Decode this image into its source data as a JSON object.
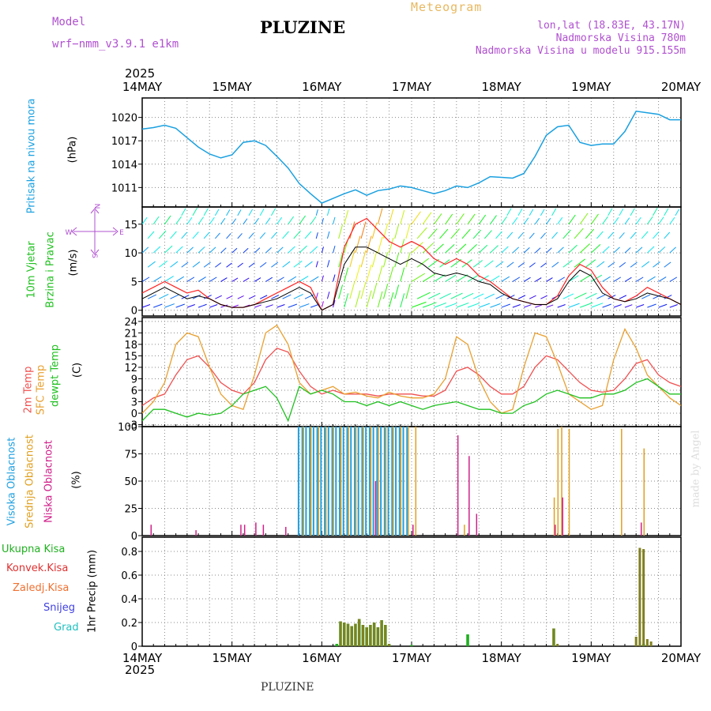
{
  "header": {
    "model_label": "Model",
    "model_name": "wrf−nmm_v3.9.1  e1km",
    "title": "PLUZINE",
    "meteogram": "Meteogram",
    "lonlat": "lon,lat (18.83E, 43.17N)",
    "altitude": "Nadmorska Visina 780m",
    "model_altitude": "Nadmorska Visina u modelu 915.155m",
    "year_top": "2025",
    "year_bottom": "2025",
    "footer": "PLUZINE",
    "watermark": "made by Angel"
  },
  "dates": [
    "14MAY",
    "15MAY",
    "16MAY",
    "17MAY",
    "18MAY",
    "19MAY",
    "20MAY"
  ],
  "panel_labels": {
    "pressure": [
      "Pritisak na nivou mora",
      "(hPa)"
    ],
    "wind": [
      "10m Vjetar",
      "Brzina i Pravac",
      "(m/s)"
    ],
    "wind_compass": [
      "N",
      "W",
      "E",
      "S"
    ],
    "temp": [
      "2m Temp",
      "SFC Temp",
      "dewpt Temp",
      "(C)"
    ],
    "cloud": [
      "Visoka Oblacnost",
      "Srednja Oblacnost",
      "Niska Oblacnost",
      "(%)"
    ],
    "precip_ylabel": "1hr Precip (mm)",
    "precip_legend": [
      "Ukupna Kisa",
      "Konvek.Kisa",
      "Zaledj.Kisa",
      "Snijeg",
      "Grad"
    ]
  },
  "colors": {
    "pressure": "#1aa0e0",
    "wind_speed": "#000000",
    "gust": "#ff2020",
    "temp2m": "#f05050",
    "sfc": "#e8a030",
    "dewpt": "#20c020",
    "cloud_high": "#20a0e0",
    "cloud_mid": "#e0a020",
    "cloud_low": "#d0208a",
    "precip": "#808020",
    "precip_green": "#20b020",
    "leg_ukupna": "#20b020",
    "leg_konvek": "#e03030",
    "leg_zaledj": "#f07030",
    "leg_snijeg": "#4040e0",
    "leg_grad": "#20c0c0",
    "purple_text": "#b050d0"
  },
  "chart_data": [
    {
      "type": "line",
      "panel": "pressure",
      "ylim": [
        1008.5,
        1022.5
      ],
      "yticks": [
        1011,
        1014,
        1017,
        1020
      ],
      "series": [
        {
          "x": [
            0,
            3,
            6,
            9,
            12,
            15,
            18,
            21,
            24,
            27,
            30,
            33,
            36,
            39,
            42,
            45,
            48,
            51,
            54,
            57,
            60,
            63,
            66,
            69,
            72,
            75,
            78,
            81,
            84,
            87,
            90,
            93,
            96,
            99,
            102,
            105,
            108,
            111,
            114,
            117,
            120,
            123,
            126,
            129,
            132,
            135,
            138,
            141,
            144
          ],
          "values": [
            1018.5,
            1018.7,
            1019.0,
            1018.6,
            1017.4,
            1016.2,
            1015.3,
            1014.8,
            1015.2,
            1016.8,
            1017.0,
            1016.4,
            1015.0,
            1013.5,
            1011.5,
            1010.2,
            1009.0,
            1009.6,
            1010.2,
            1010.7,
            1010.0,
            1010.6,
            1010.8,
            1011.2,
            1011.0,
            1010.6,
            1010.2,
            1010.6,
            1011.2,
            1011.0,
            1011.6,
            1012.4,
            1012.3,
            1012.2,
            1012.8,
            1015.0,
            1017.7,
            1018.8,
            1019.0,
            1016.8,
            1016.4,
            1016.6,
            1016.6,
            1018.2,
            1020.8,
            1020.6,
            1020.4,
            1019.7,
            1019.7
          ]
        }
      ]
    },
    {
      "type": "line",
      "panel": "wind",
      "ylim": [
        -1,
        18
      ],
      "yticks": [
        0,
        5,
        10,
        15
      ],
      "series": [
        {
          "name": "speed",
          "x": [
            0,
            3,
            6,
            9,
            12,
            15,
            18,
            21,
            24,
            27,
            30,
            33,
            36,
            39,
            42,
            45,
            48,
            51,
            54,
            57,
            60,
            63,
            66,
            69,
            72,
            75,
            78,
            81,
            84,
            87,
            90,
            93,
            96,
            99,
            102,
            105,
            108,
            111,
            114,
            117,
            120,
            123,
            126,
            129,
            132,
            135,
            138,
            141,
            144
          ],
          "values": [
            2,
            3,
            4,
            3,
            2,
            2.5,
            2,
            1,
            0.5,
            0.5,
            1,
            1.5,
            2,
            3,
            4,
            3,
            0,
            1,
            8,
            11,
            11,
            10,
            9,
            8,
            9,
            8,
            6.5,
            6,
            6.5,
            6,
            5,
            4.5,
            3,
            2,
            1.5,
            1,
            1,
            2,
            5,
            7,
            6,
            3,
            2,
            1.5,
            2,
            3,
            2.5,
            2,
            1
          ]
        },
        {
          "name": "gust",
          "x": [
            0,
            3,
            6,
            9,
            12,
            15,
            18,
            21,
            24,
            27,
            30,
            33,
            36,
            39,
            42,
            45,
            48,
            51,
            54,
            57,
            60,
            63,
            66,
            69,
            72,
            75,
            78,
            81,
            84,
            87,
            90,
            93,
            96,
            99,
            102,
            105,
            108,
            111,
            114,
            117,
            120,
            123,
            126,
            129,
            132,
            135,
            138,
            141,
            144
          ],
          "values": [
            3,
            4,
            5,
            4,
            3,
            3.5,
            2,
            1,
            0.5,
            0.5,
            1,
            2,
            3,
            4,
            5,
            4,
            0,
            1,
            11,
            15,
            16,
            14,
            12,
            11,
            12,
            11,
            9,
            8,
            9,
            8,
            6,
            5,
            3.5,
            2,
            1.5,
            1,
            1,
            2.5,
            6,
            8,
            7,
            4,
            2,
            1.5,
            2.5,
            4,
            3,
            2,
            1
          ]
        }
      ]
    },
    {
      "type": "line",
      "panel": "temperature",
      "ylim": [
        -3.5,
        25
      ],
      "yticks": [
        -3,
        0,
        3,
        6,
        9,
        12,
        15,
        18,
        21,
        24
      ],
      "series": [
        {
          "name": "2m",
          "x": [
            0,
            3,
            6,
            9,
            12,
            15,
            18,
            21,
            24,
            27,
            30,
            33,
            36,
            39,
            42,
            45,
            48,
            51,
            54,
            57,
            60,
            63,
            66,
            69,
            72,
            75,
            78,
            81,
            84,
            87,
            90,
            93,
            96,
            99,
            102,
            105,
            108,
            111,
            114,
            117,
            120,
            123,
            126,
            129,
            132,
            135,
            138,
            141,
            144
          ],
          "values": [
            2,
            4,
            5,
            10,
            14,
            15,
            12,
            8,
            6,
            5,
            8,
            14,
            17,
            16,
            11,
            7,
            5,
            6,
            5,
            5,
            5,
            4.5,
            5,
            5,
            5,
            4.5,
            4.5,
            6,
            11,
            12,
            10,
            7,
            5,
            5,
            7,
            12,
            15,
            14,
            11,
            8,
            6,
            5.5,
            6,
            9,
            13,
            14,
            10,
            8,
            7
          ]
        },
        {
          "name": "SFC",
          "x": [
            0,
            3,
            6,
            9,
            12,
            15,
            18,
            21,
            24,
            27,
            30,
            33,
            36,
            39,
            42,
            45,
            48,
            51,
            54,
            57,
            60,
            63,
            66,
            69,
            72,
            75,
            78,
            81,
            84,
            87,
            90,
            93,
            96,
            99,
            102,
            105,
            108,
            111,
            114,
            117,
            120,
            123,
            126,
            129,
            132,
            135,
            138,
            141,
            144
          ],
          "values": [
            0,
            3,
            8,
            18,
            21,
            20,
            12,
            5,
            2,
            1,
            10,
            21,
            23,
            18,
            8,
            5,
            6,
            7,
            5,
            5.5,
            4.5,
            4,
            5.5,
            4.5,
            4,
            4,
            5,
            9,
            20,
            18,
            9,
            3,
            0,
            1,
            12,
            21,
            20,
            13,
            5,
            3,
            1,
            2,
            14,
            22,
            17,
            10,
            7,
            4,
            2
          ]
        },
        {
          "name": "dewpt",
          "x": [
            0,
            3,
            6,
            9,
            12,
            15,
            18,
            21,
            24,
            27,
            30,
            33,
            36,
            39,
            42,
            45,
            48,
            51,
            54,
            57,
            60,
            63,
            66,
            69,
            72,
            75,
            78,
            81,
            84,
            87,
            90,
            93,
            96,
            99,
            102,
            105,
            108,
            111,
            114,
            117,
            120,
            123,
            126,
            129,
            132,
            135,
            138,
            141,
            144
          ],
          "values": [
            -2,
            1,
            1,
            0,
            -1,
            0,
            -0.5,
            0,
            2,
            5,
            6,
            7,
            4,
            -2,
            7,
            5,
            6,
            5,
            3,
            3,
            2,
            3,
            2,
            3,
            2,
            1,
            2,
            2.5,
            3,
            2,
            1,
            1,
            0,
            0,
            2,
            3,
            5,
            6,
            5,
            4,
            4,
            5,
            5,
            6,
            8,
            9,
            7,
            5,
            5
          ]
        }
      ]
    },
    {
      "type": "bar",
      "panel": "cloud",
      "ylim": [
        0,
        100
      ],
      "yticks": [
        0,
        25,
        50,
        75,
        100
      ],
      "series": [
        {
          "name": "high",
          "x": [
            42,
            43,
            44,
            45,
            46,
            47,
            48,
            49,
            50,
            51,
            52,
            53,
            54,
            55,
            56,
            57,
            58,
            59,
            60,
            61,
            62,
            63,
            64,
            65,
            66,
            67,
            68,
            69,
            70,
            71
          ],
          "values": [
            100,
            100,
            100,
            100,
            100,
            100,
            100,
            100,
            100,
            100,
            100,
            100,
            100,
            100,
            100,
            100,
            100,
            100,
            100,
            100,
            100,
            100,
            100,
            100,
            100,
            100,
            100,
            100,
            100,
            100
          ]
        },
        {
          "name": "mid",
          "x": [
            43,
            45,
            47,
            49,
            51,
            53,
            55,
            57,
            59,
            61,
            63,
            65,
            67,
            69,
            71,
            73,
            86,
            110,
            111,
            112,
            114,
            128,
            134
          ],
          "values": [
            100,
            100,
            100,
            100,
            100,
            100,
            100,
            100,
            100,
            100,
            100,
            100,
            100,
            100,
            100,
            100,
            10,
            35,
            98,
            100,
            98,
            98,
            80
          ]
        },
        {
          "name": "low",
          "x": [
            2,
            14,
            26,
            27,
            30,
            32,
            38,
            62,
            72,
            84,
            87,
            89,
            110,
            112,
            133
          ],
          "values": [
            10,
            5,
            10,
            10,
            12,
            10,
            8,
            50,
            10,
            92,
            73,
            20,
            10,
            35,
            12
          ]
        }
      ]
    },
    {
      "type": "bar",
      "panel": "precip",
      "ylim": [
        0,
        0.92
      ],
      "yticks": [
        0,
        0.2,
        0.4,
        0.6,
        0.8
      ],
      "series": [
        {
          "name": "rain_dark",
          "x": [
            53,
            54,
            55,
            56,
            57,
            58,
            59,
            60,
            61,
            62,
            63,
            64,
            65,
            66,
            110,
            111,
            132,
            133,
            134,
            135,
            136
          ],
          "values": [
            0.21,
            0.2,
            0.19,
            0.17,
            0.19,
            0.23,
            0.18,
            0.16,
            0.18,
            0.2,
            0.16,
            0.22,
            0.18,
            0.02,
            0.15,
            0.02,
            0.08,
            0.83,
            0.82,
            0.06,
            0.04
          ]
        },
        {
          "name": "rain_green",
          "x": [
            52,
            53,
            54,
            55,
            56,
            57,
            58,
            59,
            60,
            61,
            62,
            63,
            64,
            65,
            66,
            72,
            87,
            110,
            134
          ],
          "values": [
            0.02,
            0.21,
            0.2,
            0.19,
            0.17,
            0.19,
            0.23,
            0.18,
            0.16,
            0.18,
            0.2,
            0.16,
            0.22,
            0.18,
            0.02,
            0.01,
            0.1,
            0.15,
            0.02
          ]
        }
      ]
    }
  ]
}
